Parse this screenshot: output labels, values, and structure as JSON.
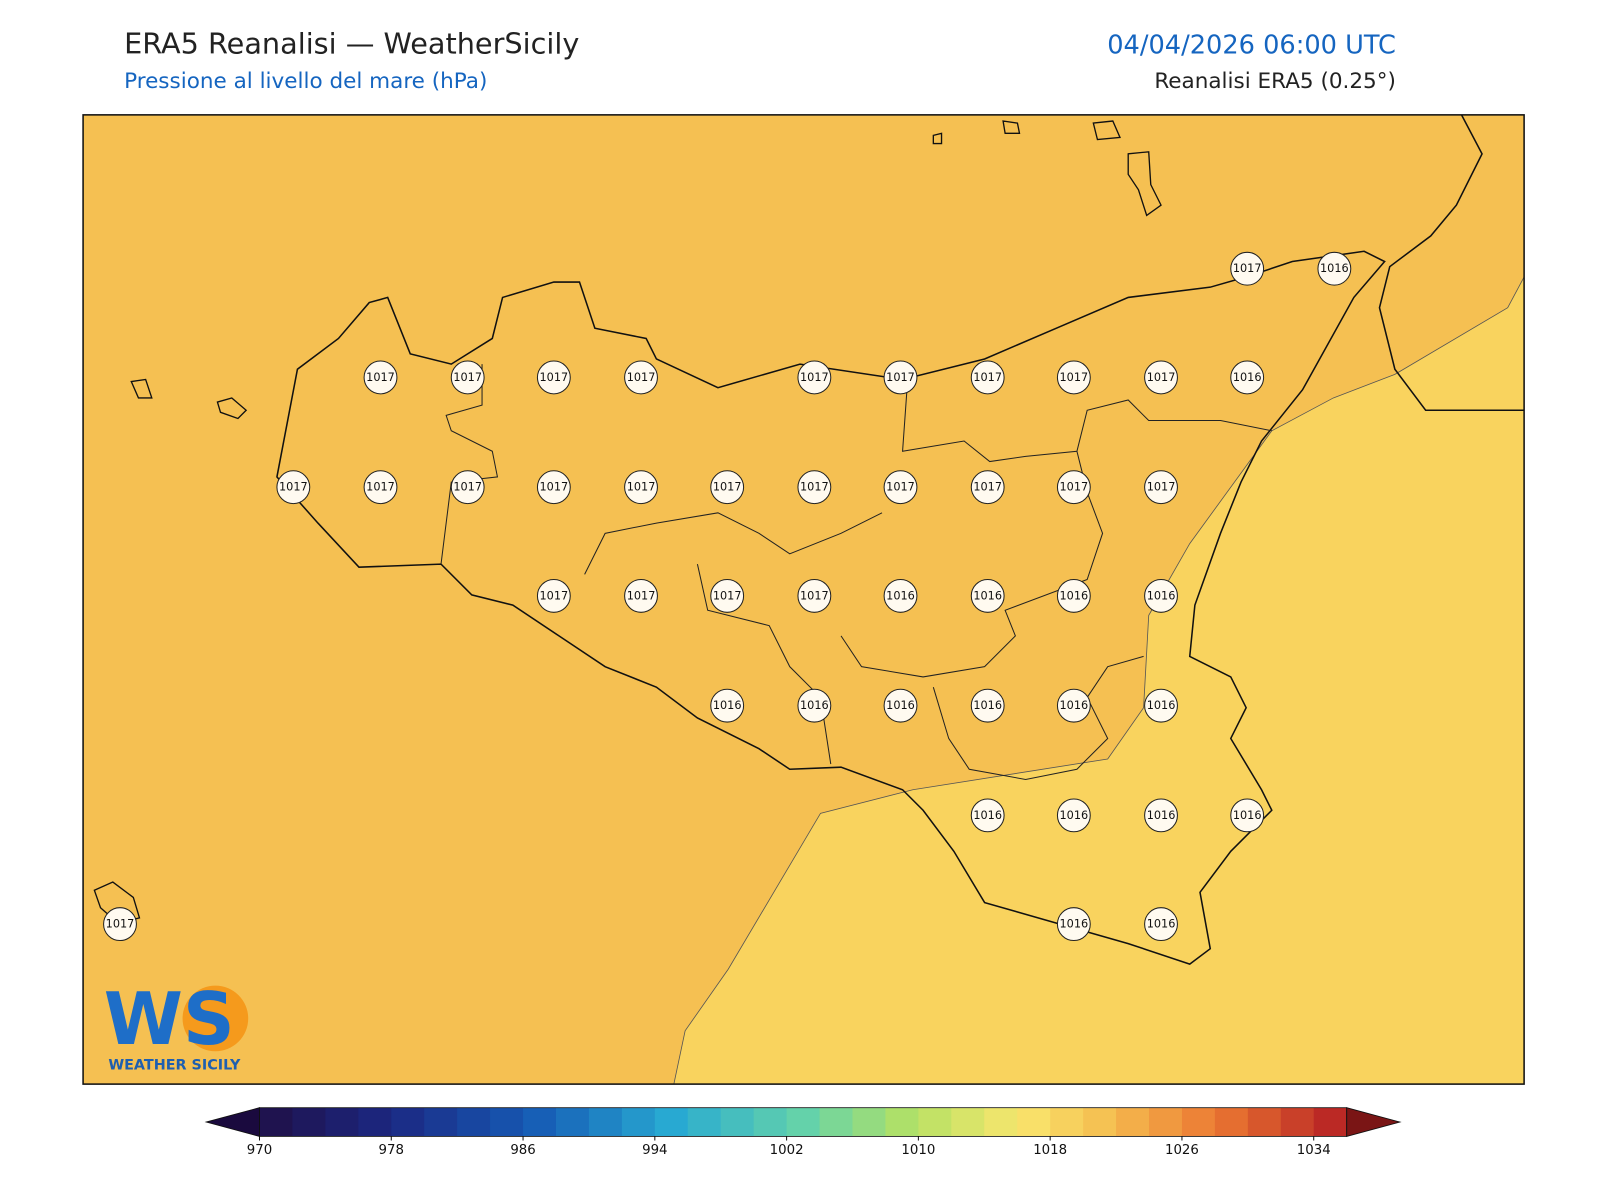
{
  "header": {
    "title": "ERA5 Reanalisi — WeatherSicily",
    "subtitle": "Pressione al livello del mare (hPa)",
    "datetime": "04/04/2026 06:00 UTC",
    "source": "Reanalisi ERA5 (0.25°)"
  },
  "stations": [
    {
      "value": 1017
    },
    {
      "value": 1016
    },
    {
      "value": 1017
    },
    {
      "value": 1017
    },
    {
      "value": 1017
    },
    {
      "value": 1017
    },
    {
      "value": 1017
    },
    {
      "value": 1017
    },
    {
      "value": 1017
    },
    {
      "value": 1017
    },
    {
      "value": 1017
    },
    {
      "value": 1016
    },
    {
      "value": 1017
    },
    {
      "value": 1017
    },
    {
      "value": 1017
    },
    {
      "value": 1017
    },
    {
      "value": 1017
    },
    {
      "value": 1017
    },
    {
      "value": 1017
    },
    {
      "value": 1017
    },
    {
      "value": 1017
    },
    {
      "value": 1017
    },
    {
      "value": 1017
    },
    {
      "value": 1017
    },
    {
      "value": 1017
    },
    {
      "value": 1017
    },
    {
      "value": 1017
    },
    {
      "value": 1016
    },
    {
      "value": 1016
    },
    {
      "value": 1016
    },
    {
      "value": 1016
    },
    {
      "value": 1016
    },
    {
      "value": 1016
    },
    {
      "value": 1016
    },
    {
      "value": 1016
    },
    {
      "value": 1016
    },
    {
      "value": 1016
    },
    {
      "value": 1016
    },
    {
      "value": 1016
    },
    {
      "value": 1016
    },
    {
      "value": 1016
    },
    {
      "value": 1017
    },
    {
      "value": 1016
    },
    {
      "value": 1016
    }
  ],
  "colorbar": {
    "range": [
      970,
      1036
    ],
    "step": 2,
    "ticks": [
      970,
      978,
      986,
      994,
      1002,
      1010,
      1018,
      1026,
      1034
    ]
  },
  "logo": {
    "mark": "WS",
    "name": "WEATHER SICILY"
  }
}
